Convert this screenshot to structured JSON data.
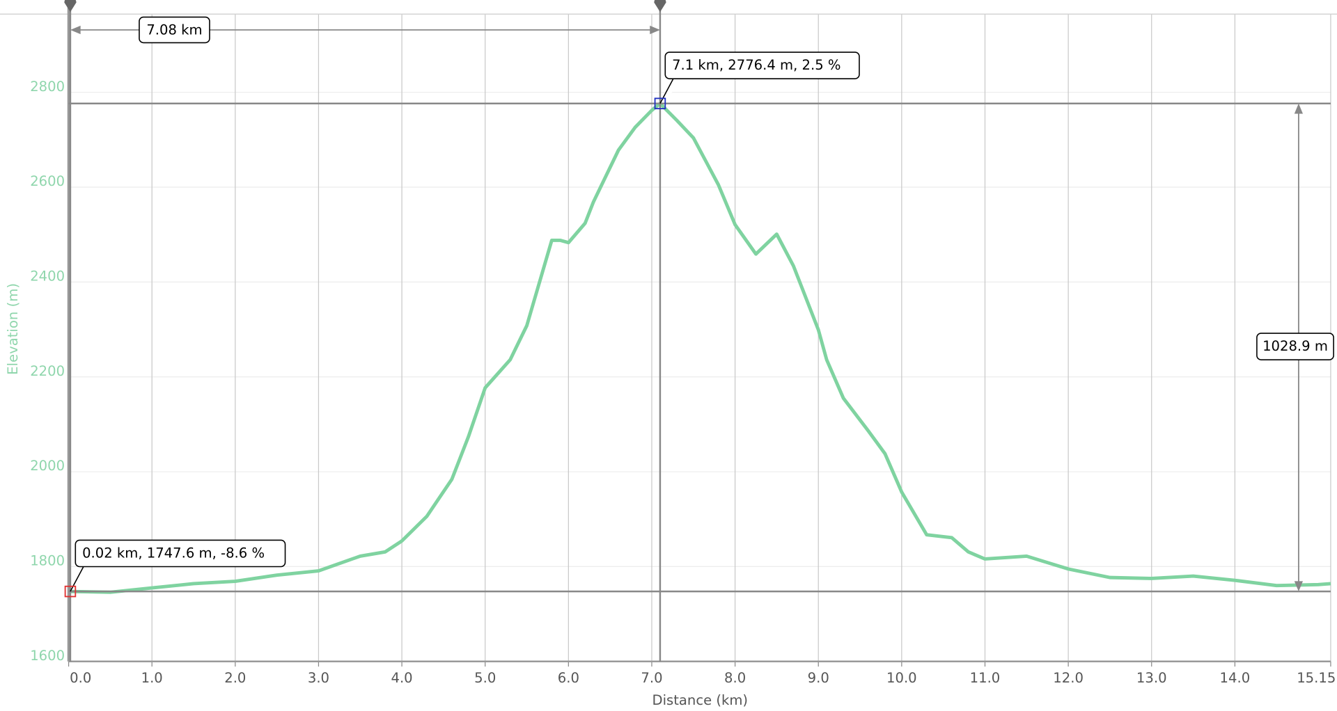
{
  "chart_data": {
    "type": "line",
    "x_label": "Distance (km)",
    "y_label": "Elevation (m)",
    "x": [
      0.02,
      0.5,
      1.0,
      1.5,
      2.0,
      2.5,
      3.0,
      3.5,
      3.8,
      4.0,
      4.3,
      4.6,
      4.8,
      5.0,
      5.3,
      5.5,
      5.8,
      5.9,
      6.0,
      6.2,
      6.3,
      6.6,
      6.8,
      7.0,
      7.1,
      7.3,
      7.5,
      7.8,
      8.0,
      8.25,
      8.5,
      8.7,
      9.0,
      9.1,
      9.3,
      9.6,
      9.8,
      10.0,
      10.3,
      10.6,
      10.8,
      11.0,
      11.5,
      12.0,
      12.5,
      13.0,
      13.5,
      14.0,
      14.5,
      15.0,
      15.15
    ],
    "series": [
      {
        "name": "Elevation",
        "color": "#7fd3a0",
        "values": [
          1747.6,
          1746,
          1755,
          1764,
          1769,
          1782,
          1791,
          1822,
          1831,
          1854,
          1906,
          1984,
          2074,
          2177,
          2236,
          2308,
          2488,
          2488,
          2483,
          2524,
          2569,
          2678,
          2726,
          2762,
          2776.4,
          2741,
          2704,
          2605,
          2521,
          2459,
          2501,
          2434,
          2299,
          2236,
          2155,
          2086,
          2038,
          1957,
          1867,
          1861,
          1831,
          1816,
          1822,
          1795,
          1777,
          1775,
          1780,
          1771,
          1760,
          1762,
          1764
        ]
      }
    ],
    "xlim": [
      0,
      15.15
    ],
    "ylim": [
      1600,
      2964
    ],
    "xticks": [
      {
        "value": 0,
        "label": "0.0"
      },
      {
        "value": 1,
        "label": "1.0"
      },
      {
        "value": 2,
        "label": "2.0"
      },
      {
        "value": 3,
        "label": "3.0"
      },
      {
        "value": 4,
        "label": "4.0"
      },
      {
        "value": 5,
        "label": "5.0"
      },
      {
        "value": 6,
        "label": "6.0"
      },
      {
        "value": 7,
        "label": "7.0"
      },
      {
        "value": 8,
        "label": "8.0"
      },
      {
        "value": 9,
        "label": "9.0"
      },
      {
        "value": 10,
        "label": "10.0"
      },
      {
        "value": 11,
        "label": "11.0"
      },
      {
        "value": 12,
        "label": "12.0"
      },
      {
        "value": 13,
        "label": "13.0"
      },
      {
        "value": 14,
        "label": "14.0"
      },
      15.15
    ],
    "yticks": [
      1600,
      1800,
      2000,
      2200,
      2400,
      2600,
      2800
    ],
    "grid": true,
    "markers": [
      {
        "x": 0.02,
        "y": 1747.6,
        "label": "0.02 km, 1747.6 m, -8.6 %",
        "color": "#e03030"
      },
      {
        "x": 7.1,
        "y": 2776.4,
        "label": "7.1 km, 2776.4 m, 2.5 %",
        "color": "#2030c0"
      }
    ],
    "distance_label": "7.08 km",
    "height_label": "1028.9 m"
  }
}
